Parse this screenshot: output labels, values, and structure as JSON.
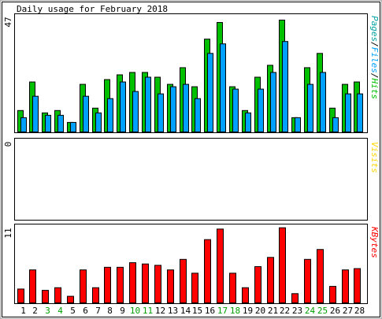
{
  "chart_data": [
    {
      "type": "bar",
      "title": "Daily usage for February 2018",
      "panel": "pages-files-hits",
      "ylabel_max": "47",
      "legend": [
        "Pages",
        "/",
        "Files",
        "/",
        "Hits"
      ],
      "categories": [
        "1",
        "2",
        "3",
        "4",
        "5",
        "6",
        "7",
        "8",
        "9",
        "10",
        "11",
        "12",
        "13",
        "14",
        "15",
        "16",
        "17",
        "18",
        "19",
        "20",
        "21",
        "22",
        "23",
        "24",
        "25",
        "26",
        "27",
        "28"
      ],
      "weekend_days": [
        "3",
        "4",
        "10",
        "11",
        "17",
        "18",
        "24",
        "25"
      ],
      "ylim": [
        0,
        47
      ],
      "series": [
        {
          "name": "Hits",
          "values": [
            9,
            21,
            8,
            9,
            4,
            20,
            10,
            22,
            24,
            25,
            25,
            23,
            20,
            27,
            19,
            39,
            46,
            19,
            9,
            23,
            28,
            47,
            6,
            27,
            33,
            10,
            20,
            21
          ]
        },
        {
          "name": "Files",
          "values": [
            6,
            15,
            7,
            7,
            4,
            15,
            8,
            14,
            21,
            17,
            23,
            16,
            19,
            20,
            14,
            33,
            37,
            18,
            8,
            18,
            25,
            38,
            6,
            20,
            25,
            6,
            16,
            16
          ]
        }
      ]
    },
    {
      "type": "bar",
      "panel": "visits",
      "ylabel_max": "0",
      "legend": [
        "Visits"
      ],
      "ylim": [
        0,
        1
      ],
      "series": [
        {
          "name": "Visits",
          "values": [
            0,
            0,
            0,
            0,
            0,
            0,
            0,
            0,
            0,
            0,
            0,
            0,
            0,
            0,
            0,
            0,
            0,
            0,
            0,
            0,
            0,
            0,
            0,
            0,
            0,
            0,
            0,
            0
          ]
        }
      ]
    },
    {
      "type": "bar",
      "panel": "kbytes",
      "ylabel_max": "11",
      "legend": [
        "KBytes"
      ],
      "ylim": [
        0,
        11
      ],
      "series": [
        {
          "name": "KBytes",
          "values": [
            2.1,
            5.0,
            1.9,
            2.3,
            1.0,
            5.0,
            2.3,
            5.4,
            5.4,
            6.1,
            5.9,
            5.7,
            5.0,
            6.6,
            4.5,
            9.6,
            11.2,
            4.5,
            2.3,
            5.5,
            6.9,
            11.4,
            1.4,
            6.6,
            8.1,
            2.5,
            5.0,
            5.2
          ]
        }
      ]
    }
  ],
  "colors": {
    "hits": "#00C000",
    "files": "#00A0FF",
    "visits": "#FFD700",
    "kbytes": "#FF0000",
    "weekday_label": "#000000",
    "weekend_label": "#00A000",
    "border_dark": "#000000",
    "bg": "#ffffff"
  }
}
